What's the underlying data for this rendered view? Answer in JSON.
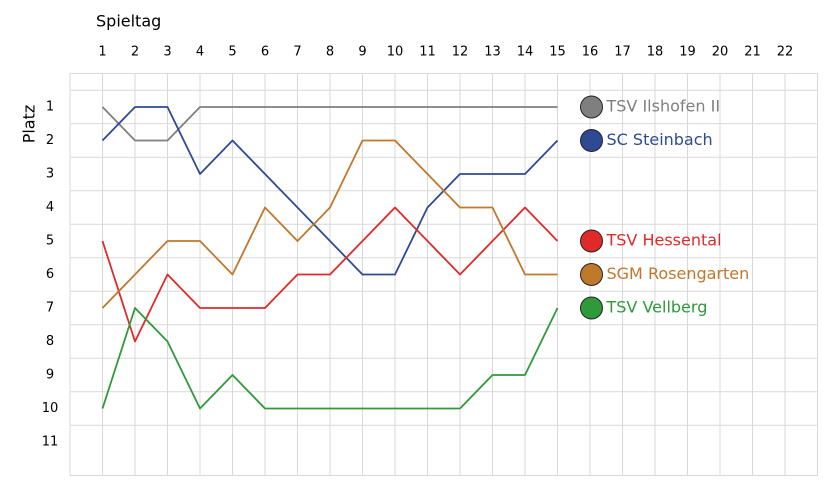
{
  "chart_data": {
    "type": "line",
    "x_label": "Spieltag",
    "y_label": "Platz",
    "x": [
      1,
      2,
      3,
      4,
      5,
      6,
      7,
      8,
      9,
      10,
      11,
      12,
      13,
      14,
      15
    ],
    "xlim": [
      0,
      23
    ],
    "xticks": [
      1,
      2,
      3,
      4,
      5,
      6,
      7,
      8,
      9,
      10,
      11,
      12,
      13,
      14,
      15,
      16,
      17,
      18,
      19,
      20,
      21,
      22
    ],
    "ylim": [
      0,
      12
    ],
    "yticks": [
      1,
      2,
      3,
      4,
      5,
      6,
      7,
      8,
      9,
      10,
      11
    ],
    "y_inverted": true,
    "grid": true,
    "series": [
      {
        "name": "TSV Ilshofen II",
        "color": "#7f7f7f",
        "values": [
          1,
          2,
          2,
          1,
          1,
          1,
          1,
          1,
          1,
          1,
          1,
          1,
          1,
          1,
          1
        ]
      },
      {
        "name": "SC Steinbach",
        "color": "#2f4a94",
        "values": [
          2,
          1,
          1,
          3,
          2,
          3,
          4,
          5,
          6,
          6,
          4,
          3,
          3,
          3,
          2
        ]
      },
      {
        "name": "TSV Hessental",
        "color": "#e02a2a",
        "values": [
          5,
          8,
          6,
          7,
          7,
          7,
          6,
          6,
          5,
          4,
          5,
          6,
          5,
          4,
          5
        ]
      },
      {
        "name": "SGM Rosengarten",
        "color": "#c0782a",
        "values": [
          7,
          6,
          5,
          5,
          6,
          4,
          5,
          4,
          2,
          2,
          3,
          4,
          4,
          6,
          6
        ]
      },
      {
        "name": "TSV Vellberg",
        "color": "#2e9a3a",
        "values": [
          10,
          7,
          8,
          10,
          9,
          10,
          10,
          10,
          10,
          10,
          10,
          10,
          9,
          9,
          7
        ]
      }
    ]
  }
}
